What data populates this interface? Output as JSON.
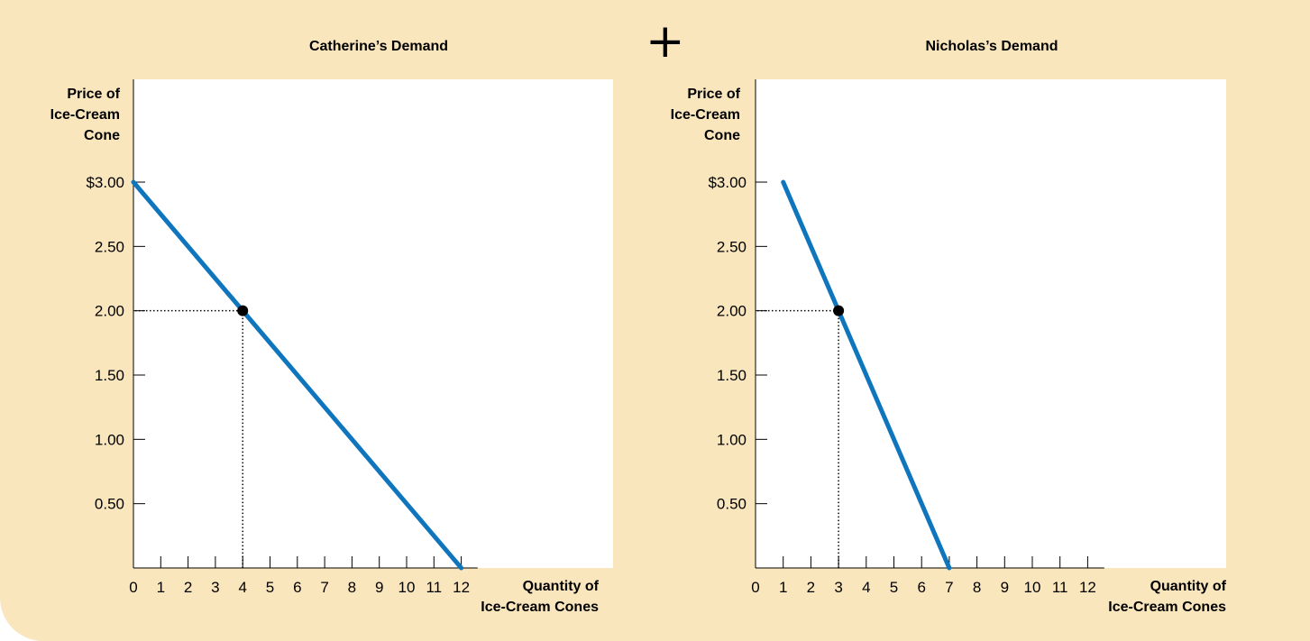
{
  "plus_sign": "+",
  "colors": {
    "background": "#fae6bd",
    "plot_area": "#ffffff",
    "demand_line": "#0f76bd",
    "point": "#000000"
  },
  "chart_data": [
    {
      "type": "line",
      "title": "Catherine’s Demand",
      "ylabel_lines": [
        "Price of",
        "Ice-Cream",
        "Cone"
      ],
      "xlabel_lines": [
        "Quantity of",
        "Ice-Cream Cones"
      ],
      "x_ticks": [
        0,
        1,
        2,
        3,
        4,
        5,
        6,
        7,
        8,
        9,
        10,
        11,
        12
      ],
      "y_ticks": [
        0.5,
        1.0,
        1.5,
        2.0,
        2.5,
        3.0
      ],
      "y_tick_labels": [
        "0.50",
        "1.00",
        "1.50",
        "2.00",
        "2.50",
        "$3.00"
      ],
      "xlim": [
        0,
        12
      ],
      "ylim": [
        0,
        3.0
      ],
      "grid": false,
      "series": [
        {
          "x": [
            0,
            12
          ],
          "y": [
            3.0,
            0
          ]
        }
      ],
      "highlight_point": {
        "x": 4,
        "y": 2.0
      }
    },
    {
      "type": "line",
      "title": "Nicholas’s Demand",
      "ylabel_lines": [
        "Price of",
        "Ice-Cream",
        "Cone"
      ],
      "xlabel_lines": [
        "Quantity of",
        "Ice-Cream Cones"
      ],
      "x_ticks": [
        0,
        1,
        2,
        3,
        4,
        5,
        6,
        7,
        8,
        9,
        10,
        11,
        12
      ],
      "y_ticks": [
        0.5,
        1.0,
        1.5,
        2.0,
        2.5,
        3.0
      ],
      "y_tick_labels": [
        "0.50",
        "1.00",
        "1.50",
        "2.00",
        "2.50",
        "$3.00"
      ],
      "xlim": [
        0,
        12
      ],
      "ylim": [
        0,
        3.0
      ],
      "grid": false,
      "series": [
        {
          "x": [
            1,
            7
          ],
          "y": [
            3.0,
            0
          ]
        }
      ],
      "highlight_point": {
        "x": 3,
        "y": 2.0
      }
    }
  ]
}
